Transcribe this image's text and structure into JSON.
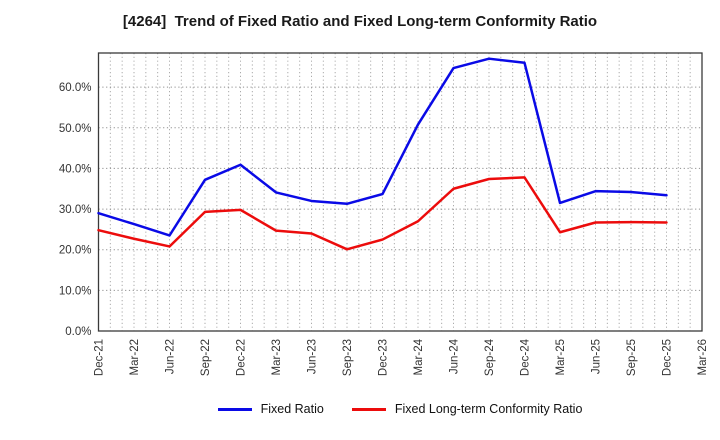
{
  "chart_data": {
    "type": "line",
    "title": "[4264]  Trend of Fixed Ratio and Fixed Long-term Conformity Ratio",
    "categories": [
      "Dec-21",
      "Mar-22",
      "Jun-22",
      "Sep-22",
      "Dec-22",
      "Mar-23",
      "Jun-23",
      "Sep-23",
      "Dec-23",
      "Mar-24",
      "Jun-24",
      "Sep-24",
      "Dec-24",
      "Mar-25",
      "Jun-25",
      "Sep-25",
      "Dec-25",
      "Mar-26"
    ],
    "series": [
      {
        "name": "Fixed Ratio",
        "color": "#0a0ae6",
        "values": [
          29.0,
          26.3,
          23.5,
          37.2,
          40.9,
          34.1,
          32.0,
          31.3,
          33.7,
          50.8,
          64.7,
          67.0,
          66.0,
          31.5,
          34.4,
          34.2,
          33.4
        ]
      },
      {
        "name": "Fixed Long-term Conformity Ratio",
        "color": "#ec0c0c",
        "values": [
          24.8,
          22.7,
          20.8,
          29.3,
          29.8,
          24.7,
          24.0,
          20.1,
          22.5,
          27.0,
          35.0,
          37.4,
          37.8,
          24.3,
          26.7,
          26.8,
          26.7
        ]
      }
    ],
    "xlabel": "",
    "ylabel": "",
    "ylim": [
      0,
      68.4
    ],
    "yticks": [
      "0.0%",
      "10.0%",
      "20.0%",
      "30.0%",
      "40.0%",
      "50.0%",
      "60.0%"
    ],
    "ytick_values": [
      0,
      10,
      20,
      30,
      40,
      50,
      60
    ],
    "grid": "dotted horizontal every 10%, dotted vertical every month",
    "legend_position": "bottom",
    "note_last_category_has_no_data": "Mar-26"
  }
}
